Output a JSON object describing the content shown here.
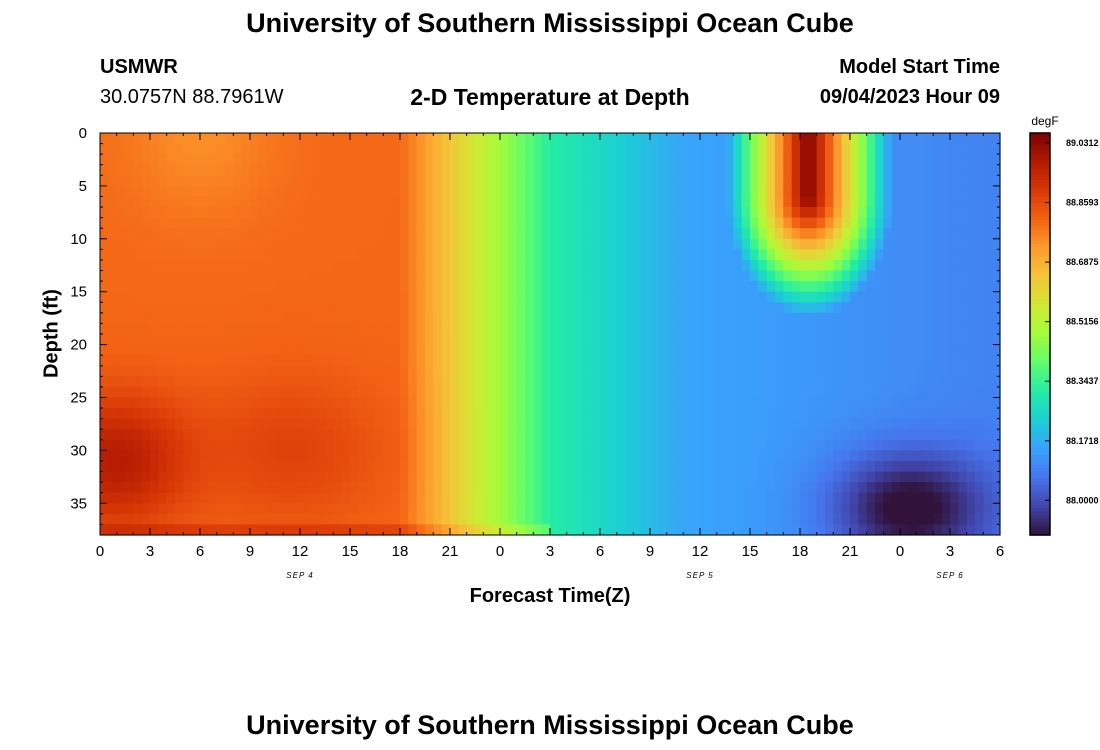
{
  "title": "University of Southern Mississippi Ocean Cube",
  "footer_title": "University of Southern Mississippi Ocean Cube",
  "station": {
    "name": "USMWR",
    "coords": "30.0757N  88.7961W"
  },
  "model": {
    "label": "Model Start Time",
    "value": "09/04/2023 Hour 09"
  },
  "subtitle": "2-D Temperature at Depth",
  "chart_data": {
    "type": "heatmap",
    "title": "2-D Temperature at Depth",
    "xlabel": "Forecast Time(Z)",
    "ylabel": "Depth (ft)",
    "x_tick_labels": [
      "0",
      "3",
      "6",
      "9",
      "12",
      "15",
      "18",
      "21",
      "0",
      "3",
      "6",
      "9",
      "12",
      "15",
      "18",
      "21",
      "0",
      "3",
      "6"
    ],
    "x_range_hours": [
      0,
      54
    ],
    "date_labels": [
      {
        "text": "SEP 4",
        "hour": 12
      },
      {
        "text": "SEP 5",
        "hour": 36
      },
      {
        "text": "SEP 6",
        "hour": 51
      }
    ],
    "y_ticks": [
      0,
      5,
      10,
      15,
      20,
      25,
      30,
      35
    ],
    "ylim": [
      38,
      0
    ],
    "colorbar": {
      "unit": "degF",
      "labels": [
        "89.0312",
        "88.8593",
        "88.6875",
        "88.5156",
        "88.3437",
        "88.1718",
        "88.0000"
      ],
      "vmin": 87.9,
      "vmax": 89.06,
      "colors": [
        "#30123b",
        "#4145ab",
        "#4675ed",
        "#39a2fc",
        "#1bcfd4",
        "#24eca6",
        "#61fc6c",
        "#a4fc3b",
        "#d1e834",
        "#f3c63a",
        "#fe9b2d",
        "#f36315",
        "#d93806",
        "#b11901",
        "#7a0403"
      ]
    }
  }
}
